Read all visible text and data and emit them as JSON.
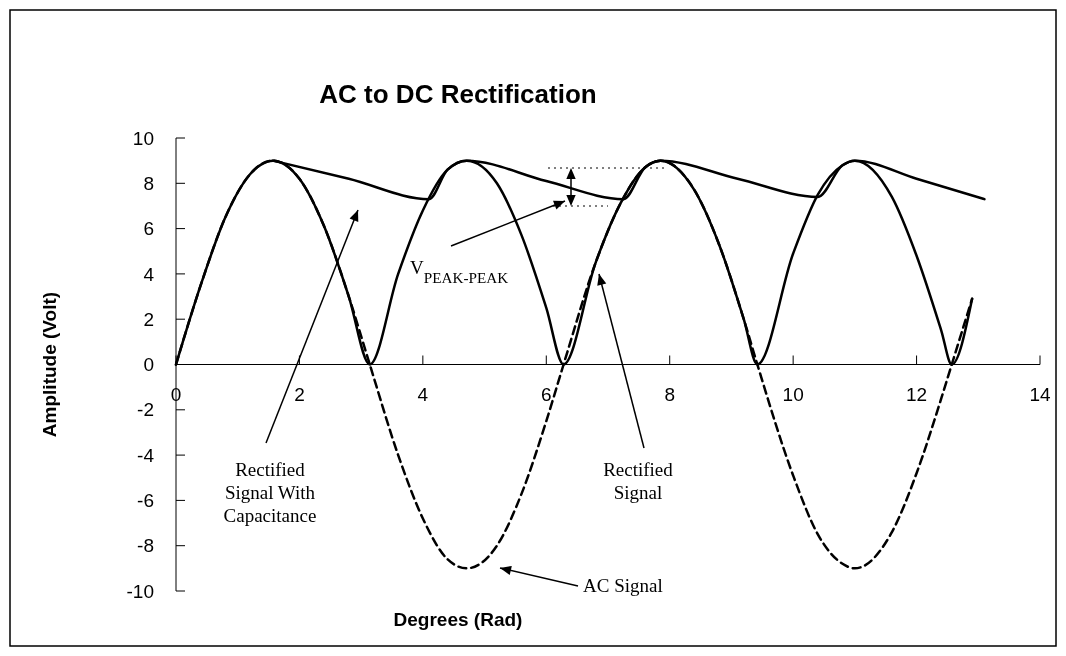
{
  "chart_data": {
    "type": "line",
    "title": "AC to DC Rectification",
    "xlabel": "Degrees (Rad)",
    "ylabel": "Amplitude (Volt)",
    "xlim": [
      0,
      14
    ],
    "xticks": [
      0,
      2,
      4,
      6,
      8,
      10,
      12,
      14
    ],
    "ylim": [
      -10,
      10
    ],
    "yticks": [
      -10,
      -8,
      -6,
      -4,
      -2,
      0,
      2,
      4,
      6,
      8,
      10
    ],
    "grid": false,
    "marker": "none",
    "series": [
      {
        "color": "#000000",
        "line_style": "dashed",
        "x": [
          0,
          0.4,
          0.8,
          1.2,
          1.57,
          2.0,
          2.4,
          2.8,
          3.14,
          3.6,
          4.0,
          4.4,
          4.71,
          5.2,
          5.6,
          6.0,
          6.28,
          6.8,
          7.2,
          7.6,
          7.85,
          8.4,
          8.8,
          9.2,
          9.42,
          10.0,
          10.4,
          10.8,
          11.0,
          11.6,
          12.0,
          12.4,
          12.57,
          12.9
        ],
        "values": [
          0,
          3.5,
          6.5,
          8.4,
          9,
          8.2,
          6.1,
          3.0,
          0,
          -4.0,
          -6.8,
          -8.6,
          -9,
          -8.0,
          -5.7,
          -2.5,
          0,
          4.5,
          7.1,
          8.7,
          9,
          7.7,
          5.3,
          2.0,
          0,
          -4.9,
          -7.5,
          -8.8,
          -9,
          -7.4,
          -4.8,
          -1.5,
          0,
          2.9
        ]
      },
      {
        "color": "#000000",
        "line_style": "solid",
        "x": [
          0,
          0.4,
          0.8,
          1.2,
          1.57,
          2.0,
          2.4,
          2.8,
          3.14,
          3.6,
          4.0,
          4.4,
          4.71,
          5.2,
          5.6,
          6.0,
          6.28,
          6.8,
          7.2,
          7.6,
          7.85,
          8.4,
          8.8,
          9.2,
          9.42,
          10.0,
          10.4,
          10.8,
          11.0,
          11.6,
          12.0,
          12.4,
          12.57,
          12.9
        ],
        "values": [
          0,
          3.5,
          6.5,
          8.4,
          9,
          8.2,
          6.1,
          3.0,
          0,
          4.0,
          6.8,
          8.6,
          9,
          8.0,
          5.7,
          2.5,
          0,
          4.5,
          7.1,
          8.7,
          9,
          7.7,
          5.3,
          2.0,
          0,
          4.9,
          7.5,
          8.8,
          9,
          7.4,
          4.8,
          1.5,
          0,
          2.9
        ]
      },
      {
        "color": "#000000",
        "line_style": "solid",
        "x": [
          1.57,
          2.8,
          4.1,
          4.4,
          4.71,
          6.0,
          7.25,
          7.6,
          7.85,
          9.1,
          10.4,
          10.8,
          11.0,
          12.0,
          13.1
        ],
        "values": [
          9,
          8.2,
          7.3,
          8.6,
          9,
          8.1,
          7.3,
          8.7,
          9,
          8.2,
          7.4,
          8.8,
          9,
          8.2,
          7.3
        ]
      }
    ],
    "annotations": [
      "Rectified Signal With Capacitance",
      "V$_{PEAK-PEAK}$",
      "Rectified Signal",
      "AC Signal"
    ]
  }
}
